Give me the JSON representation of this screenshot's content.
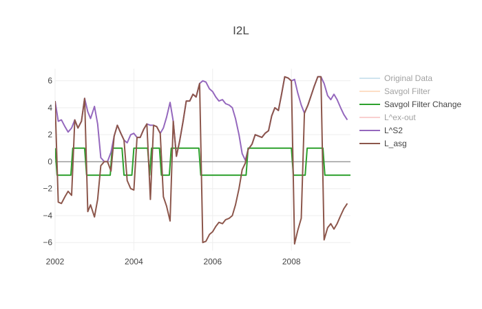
{
  "chart_data": {
    "type": "line",
    "title": "I2L",
    "xlabel": "",
    "ylabel": "",
    "xlim": [
      2002.0,
      2009.5
    ],
    "ylim": [
      -6.6,
      6.9
    ],
    "x_ticks": [
      {
        "value": 2002,
        "label": "2002"
      },
      {
        "value": 2004,
        "label": "2004"
      },
      {
        "value": 2006,
        "label": "2006"
      },
      {
        "value": 2008,
        "label": "2008"
      }
    ],
    "y_ticks": [
      {
        "value": -6,
        "label": "−6"
      },
      {
        "value": -4,
        "label": "−4"
      },
      {
        "value": -2,
        "label": "−2"
      },
      {
        "value": 0,
        "label": "0"
      },
      {
        "value": 2,
        "label": "2"
      },
      {
        "value": 4,
        "label": "4"
      },
      {
        "value": 6,
        "label": "6"
      }
    ],
    "grid": true,
    "legend_position": "right",
    "series": [
      {
        "name": "Original Data",
        "color": "#9ecae1",
        "dimmed": true,
        "points": []
      },
      {
        "name": "Savgol Filter",
        "color": "#fdbf8f",
        "dimmed": true,
        "points": []
      },
      {
        "name": "Savgol Filter Change",
        "color": "#2ca02c",
        "dimmed": false,
        "points": [
          [
            2002.0,
            1
          ],
          [
            2002.05,
            -1
          ],
          [
            2002.4,
            -1
          ],
          [
            2002.45,
            1
          ],
          [
            2002.75,
            1
          ],
          [
            2002.8,
            -1
          ],
          [
            2003.4,
            -1
          ],
          [
            2003.45,
            1
          ],
          [
            2003.7,
            1
          ],
          [
            2003.75,
            -1
          ],
          [
            2003.95,
            -1
          ],
          [
            2004.0,
            1
          ],
          [
            2004.35,
            1
          ],
          [
            2004.4,
            -1
          ],
          [
            2004.45,
            1
          ],
          [
            2004.65,
            1
          ],
          [
            2004.7,
            -1
          ],
          [
            2004.9,
            -1
          ],
          [
            2004.95,
            1
          ],
          [
            2005.65,
            1
          ],
          [
            2005.7,
            -1
          ],
          [
            2006.85,
            -1
          ],
          [
            2006.9,
            1
          ],
          [
            2008.0,
            1
          ],
          [
            2008.05,
            -1
          ],
          [
            2008.35,
            -1
          ],
          [
            2008.4,
            1
          ],
          [
            2008.8,
            1
          ],
          [
            2008.85,
            -1
          ],
          [
            2009.5,
            -1
          ]
        ]
      },
      {
        "name": "L^ex-out",
        "color": "#f4a0a0",
        "dimmed": true,
        "points": []
      },
      {
        "name": "L^S2",
        "color": "#9467bd",
        "dimmed": false,
        "points": [
          [
            2002.0,
            4.5
          ],
          [
            2002.08,
            3.0
          ],
          [
            2002.16,
            3.1
          ],
          [
            2002.25,
            2.6
          ],
          [
            2002.33,
            2.2
          ],
          [
            2002.42,
            2.5
          ],
          [
            2002.5,
            3.1
          ],
          [
            2002.58,
            2.5
          ],
          [
            2002.67,
            3.0
          ],
          [
            2002.75,
            4.7
          ],
          [
            2002.83,
            3.7
          ],
          [
            2002.9,
            3.2
          ],
          [
            2003.0,
            4.1
          ],
          [
            2003.08,
            2.8
          ],
          [
            2003.16,
            0.3
          ],
          [
            2003.25,
            0.0
          ],
          [
            2003.33,
            0.0
          ],
          [
            2003.42,
            0.7
          ],
          [
            2003.5,
            1.9
          ],
          [
            2003.58,
            2.7
          ],
          [
            2003.67,
            2.1
          ],
          [
            2003.75,
            1.6
          ],
          [
            2003.83,
            1.4
          ],
          [
            2003.92,
            2.0
          ],
          [
            2004.0,
            2.1
          ],
          [
            2004.08,
            1.8
          ],
          [
            2004.16,
            1.8
          ],
          [
            2004.25,
            2.4
          ],
          [
            2004.33,
            2.8
          ],
          [
            2004.42,
            2.7
          ],
          [
            2004.5,
            2.7
          ],
          [
            2004.58,
            2.6
          ],
          [
            2004.67,
            2.1
          ],
          [
            2004.75,
            2.5
          ],
          [
            2004.83,
            3.3
          ],
          [
            2004.92,
            4.4
          ],
          [
            2005.0,
            3.0
          ],
          [
            2005.08,
            0.4
          ],
          [
            2005.16,
            1.5
          ],
          [
            2005.25,
            3.0
          ],
          [
            2005.33,
            4.5
          ],
          [
            2005.42,
            4.5
          ],
          [
            2005.5,
            5.0
          ],
          [
            2005.58,
            4.8
          ],
          [
            2005.67,
            5.8
          ],
          [
            2005.75,
            6.0
          ],
          [
            2005.83,
            5.9
          ],
          [
            2005.92,
            5.4
          ],
          [
            2006.0,
            5.2
          ],
          [
            2006.08,
            4.8
          ],
          [
            2006.16,
            4.5
          ],
          [
            2006.25,
            4.6
          ],
          [
            2006.33,
            4.3
          ],
          [
            2006.42,
            4.2
          ],
          [
            2006.5,
            4.0
          ],
          [
            2006.58,
            3.2
          ],
          [
            2006.67,
            2.0
          ],
          [
            2006.75,
            0.6
          ],
          [
            2006.83,
            0.1
          ],
          [
            2006.9,
            0.9
          ],
          [
            2007.0,
            1.3
          ],
          [
            2007.08,
            2.0
          ],
          [
            2007.16,
            1.9
          ],
          [
            2007.25,
            1.8
          ],
          [
            2007.33,
            2.1
          ],
          [
            2007.42,
            2.3
          ],
          [
            2007.5,
            3.4
          ],
          [
            2007.58,
            4.0
          ],
          [
            2007.67,
            3.8
          ],
          [
            2007.75,
            5.0
          ],
          [
            2007.83,
            6.3
          ],
          [
            2007.92,
            6.2
          ],
          [
            2008.0,
            6.0
          ],
          [
            2008.08,
            6.1
          ],
          [
            2008.16,
            5.1
          ],
          [
            2008.25,
            4.2
          ],
          [
            2008.33,
            3.6
          ],
          [
            2008.42,
            4.2
          ],
          [
            2008.5,
            4.9
          ],
          [
            2008.58,
            5.6
          ],
          [
            2008.67,
            6.3
          ],
          [
            2008.75,
            6.3
          ],
          [
            2008.83,
            5.8
          ],
          [
            2008.92,
            4.9
          ],
          [
            2009.0,
            4.6
          ],
          [
            2009.08,
            5.0
          ],
          [
            2009.16,
            4.6
          ],
          [
            2009.25,
            4.0
          ],
          [
            2009.33,
            3.5
          ],
          [
            2009.42,
            3.1
          ]
        ]
      },
      {
        "name": "L_asg",
        "color": "#8c564b",
        "dimmed": false,
        "points": [
          [
            2002.0,
            4.5
          ],
          [
            2002.08,
            -3.0
          ],
          [
            2002.16,
            -3.1
          ],
          [
            2002.25,
            -2.6
          ],
          [
            2002.33,
            -2.2
          ],
          [
            2002.42,
            -2.5
          ],
          [
            2002.5,
            3.1
          ],
          [
            2002.58,
            2.5
          ],
          [
            2002.67,
            3.0
          ],
          [
            2002.75,
            4.7
          ],
          [
            2002.83,
            -3.7
          ],
          [
            2002.9,
            -3.2
          ],
          [
            2003.0,
            -4.1
          ],
          [
            2003.08,
            -2.8
          ],
          [
            2003.16,
            -0.3
          ],
          [
            2003.25,
            0.0
          ],
          [
            2003.33,
            0.0
          ],
          [
            2003.42,
            -0.7
          ],
          [
            2003.5,
            1.9
          ],
          [
            2003.58,
            2.7
          ],
          [
            2003.67,
            2.1
          ],
          [
            2003.75,
            1.6
          ],
          [
            2003.83,
            -1.4
          ],
          [
            2003.92,
            -2.0
          ],
          [
            2004.0,
            -2.1
          ],
          [
            2004.08,
            1.8
          ],
          [
            2004.16,
            1.8
          ],
          [
            2004.25,
            2.4
          ],
          [
            2004.33,
            2.8
          ],
          [
            2004.42,
            -2.8
          ],
          [
            2004.5,
            2.7
          ],
          [
            2004.58,
            2.6
          ],
          [
            2004.67,
            2.1
          ],
          [
            2004.75,
            -2.6
          ],
          [
            2004.83,
            -3.3
          ],
          [
            2004.92,
            -4.4
          ],
          [
            2005.0,
            3.0
          ],
          [
            2005.08,
            0.4
          ],
          [
            2005.16,
            1.5
          ],
          [
            2005.25,
            3.0
          ],
          [
            2005.33,
            4.5
          ],
          [
            2005.42,
            4.5
          ],
          [
            2005.5,
            5.0
          ],
          [
            2005.58,
            4.8
          ],
          [
            2005.67,
            5.8
          ],
          [
            2005.75,
            -6.0
          ],
          [
            2005.83,
            -5.9
          ],
          [
            2005.92,
            -5.4
          ],
          [
            2006.0,
            -5.2
          ],
          [
            2006.08,
            -4.8
          ],
          [
            2006.16,
            -4.5
          ],
          [
            2006.25,
            -4.6
          ],
          [
            2006.33,
            -4.3
          ],
          [
            2006.42,
            -4.2
          ],
          [
            2006.5,
            -4.0
          ],
          [
            2006.58,
            -3.2
          ],
          [
            2006.67,
            -2.0
          ],
          [
            2006.75,
            -0.6
          ],
          [
            2006.83,
            -0.1
          ],
          [
            2006.9,
            0.9
          ],
          [
            2007.0,
            1.3
          ],
          [
            2007.08,
            2.0
          ],
          [
            2007.16,
            1.9
          ],
          [
            2007.25,
            1.8
          ],
          [
            2007.33,
            2.1
          ],
          [
            2007.42,
            2.3
          ],
          [
            2007.5,
            3.4
          ],
          [
            2007.58,
            4.0
          ],
          [
            2007.67,
            3.8
          ],
          [
            2007.75,
            5.0
          ],
          [
            2007.83,
            6.3
          ],
          [
            2007.92,
            6.2
          ],
          [
            2008.0,
            6.0
          ],
          [
            2008.08,
            -6.1
          ],
          [
            2008.16,
            -5.1
          ],
          [
            2008.25,
            -4.2
          ],
          [
            2008.33,
            3.6
          ],
          [
            2008.42,
            4.2
          ],
          [
            2008.5,
            4.9
          ],
          [
            2008.58,
            5.6
          ],
          [
            2008.67,
            6.3
          ],
          [
            2008.75,
            6.3
          ],
          [
            2008.83,
            -5.8
          ],
          [
            2008.92,
            -4.9
          ],
          [
            2009.0,
            -4.6
          ],
          [
            2009.08,
            -5.0
          ],
          [
            2009.16,
            -4.6
          ],
          [
            2009.25,
            -4.0
          ],
          [
            2009.33,
            -3.5
          ],
          [
            2009.42,
            -3.1
          ]
        ]
      }
    ]
  }
}
